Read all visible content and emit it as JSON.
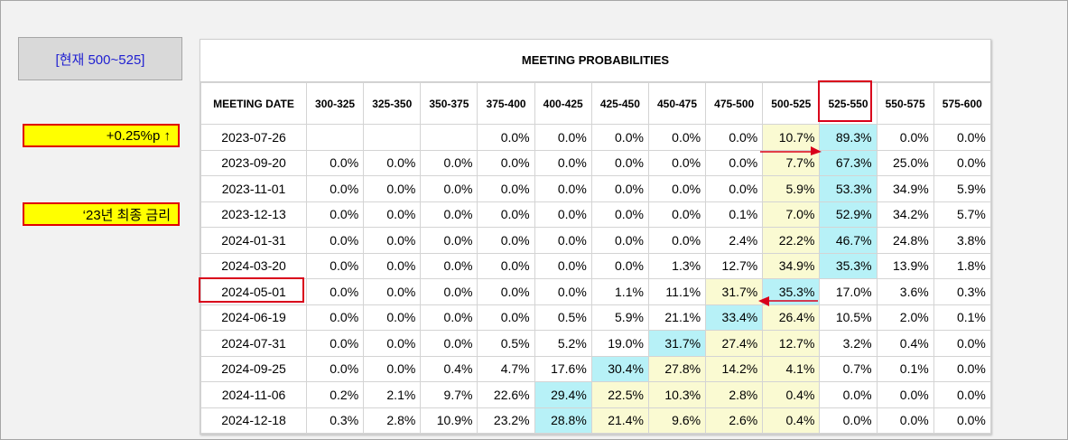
{
  "current_label": "[현재 500~525]",
  "notes": {
    "rate_hike": "+0.25%p ↑",
    "final_rate": "‘23년 최종 금리"
  },
  "table": {
    "title": "MEETING PROBABILITIES",
    "headers": [
      "MEETING DATE",
      "300-325",
      "325-350",
      "350-375",
      "375-400",
      "400-425",
      "425-450",
      "450-475",
      "475-500",
      "500-525",
      "525-550",
      "550-575",
      "575-600"
    ],
    "rows": [
      {
        "date": "2023-07-26",
        "cells": [
          "",
          "",
          "",
          "0.0%",
          "0.0%",
          "0.0%",
          "0.0%",
          "0.0%",
          "10.7%",
          "89.3%",
          "0.0%",
          "0.0%"
        ],
        "shade": [
          "",
          "",
          "",
          "",
          "",
          "",
          "",
          "",
          "y",
          "b",
          "",
          ""
        ]
      },
      {
        "date": "2023-09-20",
        "cells": [
          "0.0%",
          "0.0%",
          "0.0%",
          "0.0%",
          "0.0%",
          "0.0%",
          "0.0%",
          "0.0%",
          "7.7%",
          "67.3%",
          "25.0%",
          "0.0%"
        ],
        "shade": [
          "",
          "",
          "",
          "",
          "",
          "",
          "",
          "",
          "y",
          "b",
          "",
          ""
        ]
      },
      {
        "date": "2023-11-01",
        "cells": [
          "0.0%",
          "0.0%",
          "0.0%",
          "0.0%",
          "0.0%",
          "0.0%",
          "0.0%",
          "0.0%",
          "5.9%",
          "53.3%",
          "34.9%",
          "5.9%"
        ],
        "shade": [
          "",
          "",
          "",
          "",
          "",
          "",
          "",
          "",
          "y",
          "b",
          "",
          ""
        ]
      },
      {
        "date": "2023-12-13",
        "cells": [
          "0.0%",
          "0.0%",
          "0.0%",
          "0.0%",
          "0.0%",
          "0.0%",
          "0.0%",
          "0.1%",
          "7.0%",
          "52.9%",
          "34.2%",
          "5.7%"
        ],
        "shade": [
          "",
          "",
          "",
          "",
          "",
          "",
          "",
          "",
          "y",
          "b",
          "",
          ""
        ]
      },
      {
        "date": "2024-01-31",
        "cells": [
          "0.0%",
          "0.0%",
          "0.0%",
          "0.0%",
          "0.0%",
          "0.0%",
          "0.0%",
          "2.4%",
          "22.2%",
          "46.7%",
          "24.8%",
          "3.8%"
        ],
        "shade": [
          "",
          "",
          "",
          "",
          "",
          "",
          "",
          "",
          "y",
          "b",
          "",
          ""
        ]
      },
      {
        "date": "2024-03-20",
        "cells": [
          "0.0%",
          "0.0%",
          "0.0%",
          "0.0%",
          "0.0%",
          "0.0%",
          "1.3%",
          "12.7%",
          "34.9%",
          "35.3%",
          "13.9%",
          "1.8%"
        ],
        "shade": [
          "",
          "",
          "",
          "",
          "",
          "",
          "",
          "",
          "y",
          "b",
          "",
          ""
        ]
      },
      {
        "date": "2024-05-01",
        "cells": [
          "0.0%",
          "0.0%",
          "0.0%",
          "0.0%",
          "0.0%",
          "1.1%",
          "11.1%",
          "31.7%",
          "35.3%",
          "17.0%",
          "3.6%",
          "0.3%"
        ],
        "shade": [
          "",
          "",
          "",
          "",
          "",
          "",
          "",
          "y",
          "b",
          "",
          "",
          ""
        ]
      },
      {
        "date": "2024-06-19",
        "cells": [
          "0.0%",
          "0.0%",
          "0.0%",
          "0.0%",
          "0.5%",
          "5.9%",
          "21.1%",
          "33.4%",
          "26.4%",
          "10.5%",
          "2.0%",
          "0.1%"
        ],
        "shade": [
          "",
          "",
          "",
          "",
          "",
          "",
          "",
          "b",
          "y",
          "",
          "",
          ""
        ]
      },
      {
        "date": "2024-07-31",
        "cells": [
          "0.0%",
          "0.0%",
          "0.0%",
          "0.5%",
          "5.2%",
          "19.0%",
          "31.7%",
          "27.4%",
          "12.7%",
          "3.2%",
          "0.4%",
          "0.0%"
        ],
        "shade": [
          "",
          "",
          "",
          "",
          "",
          "",
          "b",
          "y",
          "y",
          "",
          "",
          ""
        ]
      },
      {
        "date": "2024-09-25",
        "cells": [
          "0.0%",
          "0.0%",
          "0.4%",
          "4.7%",
          "17.6%",
          "30.4%",
          "27.8%",
          "14.2%",
          "4.1%",
          "0.7%",
          "0.1%",
          "0.0%"
        ],
        "shade": [
          "",
          "",
          "",
          "",
          "",
          "b",
          "y",
          "y",
          "y",
          "",
          "",
          ""
        ]
      },
      {
        "date": "2024-11-06",
        "cells": [
          "0.2%",
          "2.1%",
          "9.7%",
          "22.6%",
          "29.4%",
          "22.5%",
          "10.3%",
          "2.8%",
          "0.4%",
          "0.0%",
          "0.0%",
          "0.0%"
        ],
        "shade": [
          "",
          "",
          "",
          "",
          "b",
          "y",
          "y",
          "y",
          "y",
          "",
          "",
          ""
        ]
      },
      {
        "date": "2024-12-18",
        "cells": [
          "0.3%",
          "2.8%",
          "10.9%",
          "23.2%",
          "28.8%",
          "21.4%",
          "9.6%",
          "2.6%",
          "0.4%",
          "0.0%",
          "0.0%",
          "0.0%"
        ],
        "shade": [
          "",
          "",
          "",
          "",
          "b",
          "y",
          "y",
          "y",
          "y",
          "",
          "",
          ""
        ]
      }
    ]
  },
  "colors": {
    "highlight_yellow": "#fafad2",
    "highlight_blue": "#b7f1f7",
    "annotation_red": "#d9001b",
    "note_fill": "#ffff00"
  }
}
